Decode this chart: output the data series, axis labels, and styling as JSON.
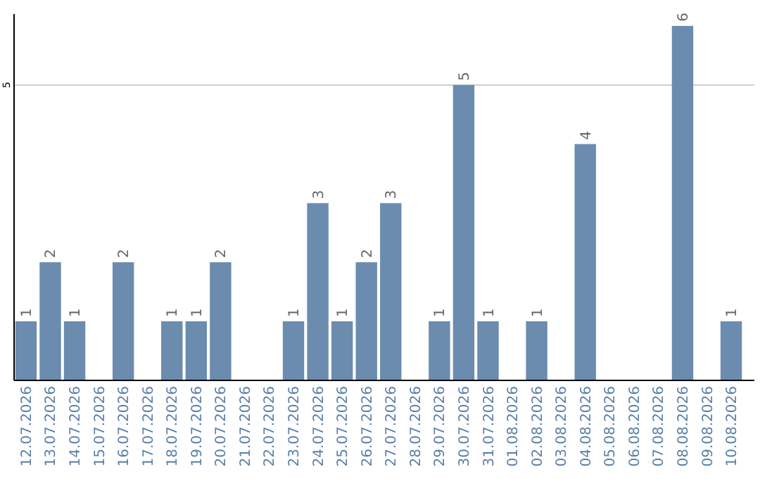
{
  "chart_data": {
    "type": "bar",
    "categories": [
      "12.07.2026",
      "13.07.2026",
      "14.07.2026",
      "15.07.2026",
      "16.07.2026",
      "17.07.2026",
      "18.07.2026",
      "19.07.2026",
      "20.07.2026",
      "21.07.2026",
      "22.07.2026",
      "23.07.2026",
      "24.07.2026",
      "25.07.2026",
      "26.07.2026",
      "27.07.2026",
      "28.07.2026",
      "29.07.2026",
      "30.07.2026",
      "31.07.2026",
      "01.08.2026",
      "02.08.2026",
      "03.08.2026",
      "04.08.2026",
      "05.08.2026",
      "06.08.2026",
      "07.08.2026",
      "08.08.2026",
      "09.08.2026",
      "10.08.2026"
    ],
    "values": [
      1,
      2,
      1,
      0,
      2,
      0,
      1,
      1,
      2,
      0,
      0,
      1,
      3,
      1,
      2,
      3,
      0,
      1,
      5,
      1,
      0,
      1,
      0,
      4,
      0,
      0,
      0,
      6,
      0,
      1
    ],
    "value_labels": [
      "1",
      "2",
      "1",
      null,
      "2",
      null,
      "1",
      "1",
      "2",
      null,
      null,
      "1",
      "3",
      "1",
      "2",
      "3",
      null,
      "1",
      "5",
      "1",
      null,
      "1",
      null,
      "4",
      null,
      null,
      null,
      "6",
      null,
      "1"
    ],
    "color": "#6b8caf",
    "ylim": [
      0,
      6.2
    ],
    "yticks": [
      5
    ],
    "grid": "y"
  }
}
